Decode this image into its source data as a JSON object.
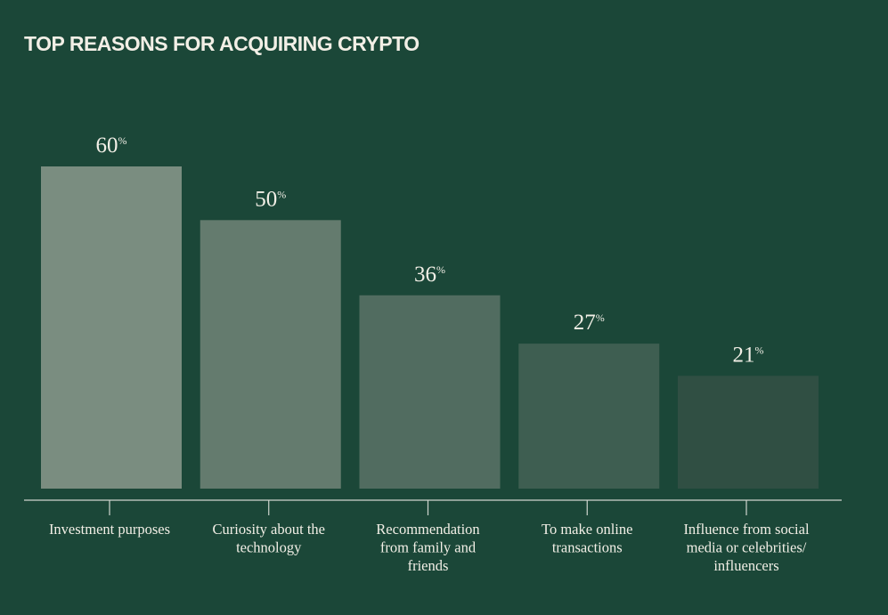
{
  "chart_data": {
    "type": "bar",
    "title": "TOP REASONS FOR ACQUIRING CRYPTO",
    "categories": [
      [
        "Investment purposes"
      ],
      [
        "Curiosity about the",
        "technology"
      ],
      [
        "Recommendation",
        "from family and",
        "friends"
      ],
      [
        "To make online",
        "transactions"
      ],
      [
        "Influence from social",
        "media or celebrities/",
        "influencers"
      ]
    ],
    "values": [
      60,
      50,
      36,
      27,
      21
    ],
    "value_suffix": "%",
    "ylim": [
      0,
      60
    ],
    "grid": false,
    "legend": "none",
    "bar_colors": [
      "#7a8d80",
      "#647b6e",
      "#516c60",
      "#3e5e51",
      "#304f43"
    ],
    "colors": {
      "background": "#1b4738",
      "text": "#f2efe6",
      "axis": "#d0d6cf"
    }
  }
}
